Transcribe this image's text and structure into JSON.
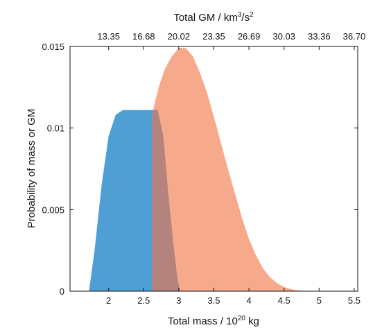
{
  "chart_data": {
    "type": "area",
    "title": "",
    "xlabel": "Total mass / 10",
    "xlabel_superscript": "20",
    "xlabel_suffix": " kg",
    "ylabel": "Probability of mass or GM",
    "x2label": "Total GM / km",
    "x2label_superscript": "3",
    "x2label_mid": "/s",
    "x2label_superscript2": "2",
    "xlim": [
      1.45,
      5.55
    ],
    "ylim": [
      0,
      0.015
    ],
    "x_ticks": [
      2,
      2.5,
      3,
      3.5,
      4,
      4.5,
      5,
      5.5
    ],
    "x_tick_labels": [
      "2",
      "2.5",
      "3",
      "3.5",
      "4",
      "4.5",
      "5",
      "5.5"
    ],
    "y_ticks": [
      0,
      0.005,
      0.01,
      0.015
    ],
    "y_tick_labels": [
      "0",
      "0.005",
      "0.01",
      "0.015"
    ],
    "x2_tick_positions": [
      2.0,
      2.5,
      3.0,
      3.5,
      4.0,
      4.5,
      5.0,
      5.5
    ],
    "x2_tick_labels": [
      "13.35",
      "16.68",
      "20.02",
      "23.35",
      "26.69",
      "30.03",
      "33.36",
      "36.70"
    ],
    "grid": false,
    "legend": "none",
    "series": [
      {
        "color": "#4f9fd4",
        "x": [
          1.72,
          1.8,
          1.9,
          2.0,
          2.1,
          2.2,
          2.3,
          2.4,
          2.5,
          2.6,
          2.7,
          2.78,
          2.85,
          2.92,
          2.98,
          3.02
        ],
        "y": [
          0,
          0.0025,
          0.0065,
          0.0095,
          0.0108,
          0.0111,
          0.0111,
          0.0111,
          0.0111,
          0.0111,
          0.0111,
          0.0095,
          0.006,
          0.003,
          0.0008,
          0
        ]
      },
      {
        "color": "#f7a98c",
        "x": [
          2.62,
          2.66,
          2.72,
          2.8,
          2.9,
          3.0,
          3.1,
          3.2,
          3.3,
          3.4,
          3.5,
          3.6,
          3.7,
          3.8,
          3.9,
          4.0,
          4.1,
          4.2,
          4.3,
          4.4,
          4.5,
          4.6,
          4.7,
          4.8,
          4.9,
          5.0
        ],
        "y": [
          0.0108,
          0.0116,
          0.0126,
          0.0136,
          0.0144,
          0.0149,
          0.0149,
          0.0144,
          0.0134,
          0.0122,
          0.0107,
          0.0091,
          0.0075,
          0.006,
          0.0045,
          0.0032,
          0.0022,
          0.0014,
          0.00085,
          0.0005,
          0.00025,
          0.00012,
          5e-05,
          2e-05,
          5e-06,
          0
        ]
      }
    ]
  },
  "colors": {
    "blue": "#4f9fd4",
    "salmon": "#f7a98c",
    "overlap": "#b4837d",
    "axis": "#111111"
  }
}
